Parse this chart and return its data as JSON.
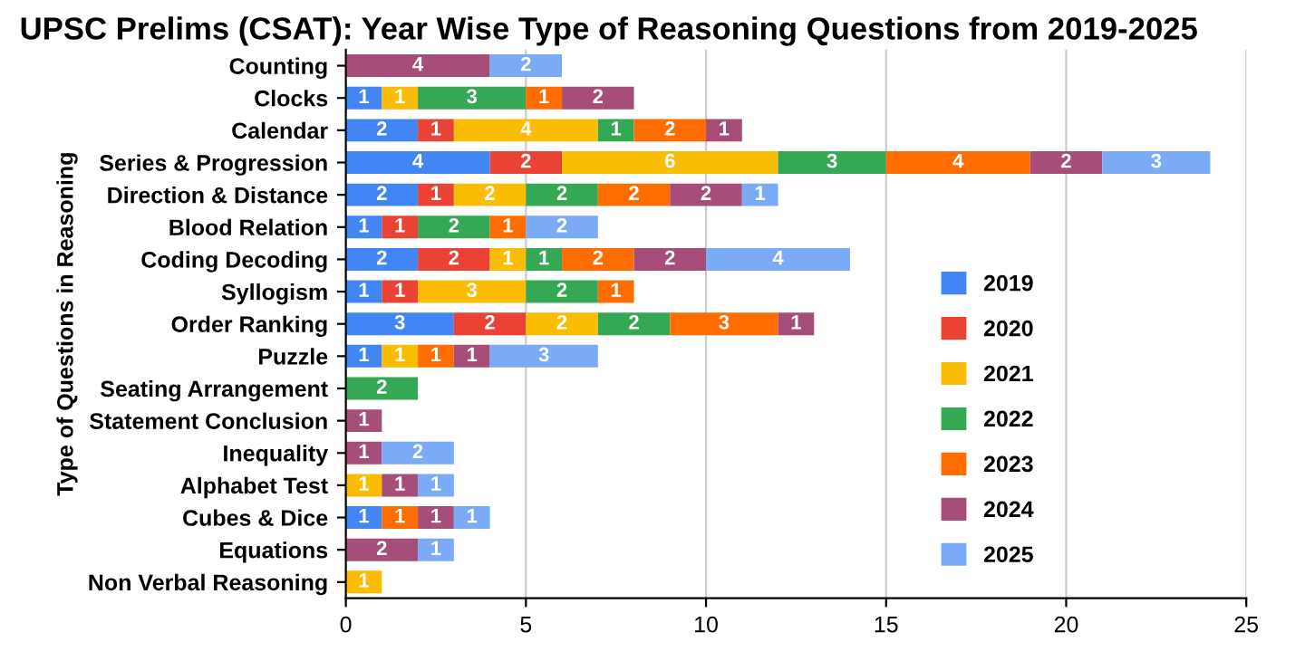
{
  "chart_data": {
    "type": "bar",
    "orientation": "horizontal",
    "stacked": true,
    "data_labels": true,
    "title": "UPSC Prelims (CSAT): Year Wise Type of Reasoning Questions from 2019-2025",
    "ylabel": "Type of Questions in Reasoning",
    "categories": [
      "Counting",
      "Clocks",
      "Calendar",
      "Series & Progression",
      "Direction & Distance",
      "Blood Relation",
      "Coding Decoding",
      "Syllogism",
      "Order Ranking",
      "Puzzle",
      "Seating Arrangement",
      "Statement Conclusion",
      "Inequality",
      "Alphabet Test",
      "Cubes & Dice",
      "Equations",
      "Non Verbal Reasoning"
    ],
    "series": [
      {
        "name": "2019",
        "color": "#4285f4",
        "values": [
          null,
          1,
          2,
          4,
          2,
          1,
          2,
          1,
          3,
          1,
          null,
          null,
          null,
          null,
          1,
          null,
          null
        ]
      },
      {
        "name": "2020",
        "color": "#ea4335",
        "values": [
          null,
          null,
          1,
          2,
          1,
          1,
          2,
          1,
          2,
          null,
          null,
          null,
          null,
          null,
          null,
          null,
          null
        ]
      },
      {
        "name": "2021",
        "color": "#fbbc04",
        "values": [
          null,
          1,
          4,
          6,
          2,
          null,
          1,
          3,
          2,
          1,
          null,
          null,
          null,
          1,
          null,
          null,
          1
        ]
      },
      {
        "name": "2022",
        "color": "#34a853",
        "values": [
          null,
          3,
          1,
          3,
          2,
          2,
          1,
          2,
          2,
          null,
          2,
          null,
          null,
          null,
          null,
          null,
          null
        ]
      },
      {
        "name": "2023",
        "color": "#ff6d01",
        "values": [
          null,
          1,
          2,
          4,
          2,
          1,
          2,
          1,
          3,
          1,
          null,
          null,
          null,
          null,
          1,
          null,
          null
        ]
      },
      {
        "name": "2024",
        "color": "#a64d79",
        "values": [
          4,
          2,
          1,
          2,
          2,
          null,
          2,
          null,
          1,
          1,
          null,
          1,
          1,
          1,
          1,
          2,
          null
        ]
      },
      {
        "name": "2025",
        "color": "#7baaf7",
        "values": [
          2,
          null,
          null,
          3,
          1,
          2,
          4,
          null,
          null,
          3,
          null,
          null,
          2,
          1,
          1,
          1,
          null
        ]
      }
    ],
    "xlim": [
      0,
      25
    ],
    "xticks": [
      0,
      5,
      10,
      15,
      20,
      25
    ],
    "grid": "x",
    "legend": "right"
  }
}
